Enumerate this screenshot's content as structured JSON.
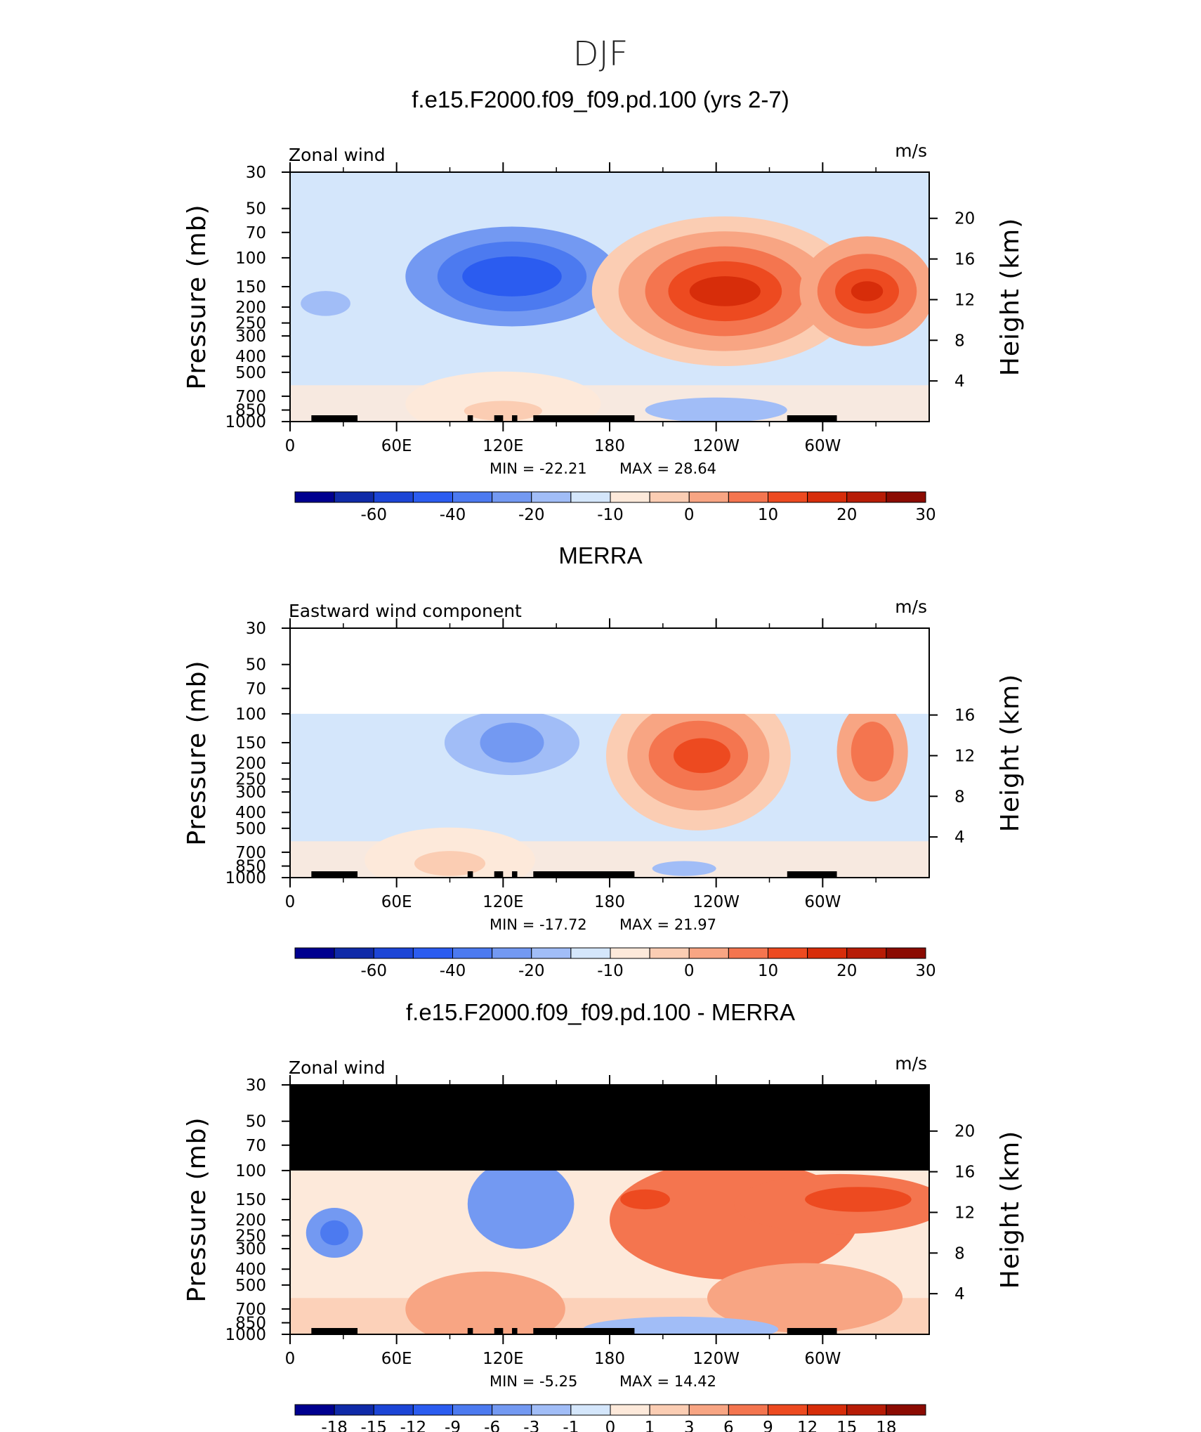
{
  "page_title": "DJF",
  "palette": {
    "p0": [
      "#00008f",
      "#0f2aa8",
      "#1c45d6",
      "#2b5cf0",
      "#4c7af0",
      "#7399f2",
      "#a1bdf7",
      "#d4e6fb",
      "#fde9da",
      "#fbcdb3",
      "#f8a583",
      "#f4754f",
      "#ed4a20",
      "#d72d0a",
      "#b71c06",
      "#8b0b02"
    ],
    "diff": [
      "#00008f",
      "#0f2aa8",
      "#1c45d6",
      "#2b5cf0",
      "#4c7af0",
      "#7399f2",
      "#a1bdf7",
      "#d4e6fb",
      "#fde9da",
      "#fbcdb3",
      "#f8a583",
      "#f4754f",
      "#ed4a20",
      "#d72d0a",
      "#b71c06",
      "#8b0b02"
    ]
  },
  "chart_data": [
    {
      "type": "heatmap",
      "title": "f.e15.F2000.f09_f09.pd.100 (yrs 2-7)",
      "left_label": "Zonal wind",
      "units": "m/s",
      "ylabel": "Pressure  (mb)",
      "ylabel_right": "Height  (km)",
      "x_ticks": [
        "0",
        "60E",
        "120E",
        "180",
        "120W",
        "60W"
      ],
      "y_ticks": [
        "30",
        "50",
        "70",
        "100",
        "150",
        "200",
        "250",
        "300",
        "400",
        "500",
        "700",
        "850",
        "1000"
      ],
      "height_ticks": [
        "20",
        "16",
        "12",
        "8",
        "4"
      ],
      "stats": {
        "min_label": "MIN  =",
        "min": "-22.21",
        "max_label": "MAX  =",
        "max": "28.64"
      },
      "colorbar_labels": [
        "-60",
        "-40",
        "-20",
        "-10",
        "0",
        "10",
        "20",
        "30"
      ],
      "masked_top": "none"
    },
    {
      "type": "heatmap",
      "title": "MERRA",
      "left_label": "Eastward wind component",
      "units": "m/s",
      "ylabel": "Pressure  (mb)",
      "ylabel_right": "Height  (km)",
      "x_ticks": [
        "0",
        "60E",
        "120E",
        "180",
        "120W",
        "60W"
      ],
      "y_ticks": [
        "30",
        "50",
        "70",
        "100",
        "150",
        "200",
        "250",
        "300",
        "400",
        "500",
        "700",
        "850",
        "1000"
      ],
      "height_ticks": [
        "16",
        "12",
        "8",
        "4"
      ],
      "stats": {
        "min_label": "MIN  =",
        "min": "-17.72",
        "max_label": "MAX  =",
        "max": "21.97"
      },
      "colorbar_labels": [
        "-60",
        "-40",
        "-20",
        "-10",
        "0",
        "10",
        "20",
        "30"
      ],
      "masked_top": "white"
    },
    {
      "type": "heatmap",
      "title": "f.e15.F2000.f09_f09.pd.100 - MERRA",
      "left_label": "Zonal wind",
      "units": "m/s",
      "ylabel": "Pressure  (mb)",
      "ylabel_right": "Height  (km)",
      "x_ticks": [
        "0",
        "60E",
        "120E",
        "180",
        "120W",
        "60W"
      ],
      "y_ticks": [
        "30",
        "50",
        "70",
        "100",
        "150",
        "200",
        "250",
        "300",
        "400",
        "500",
        "700",
        "850",
        "1000"
      ],
      "height_ticks": [
        "20",
        "16",
        "12",
        "8",
        "4"
      ],
      "stats": {
        "min_label": "MIN  =",
        "min": "-5.25",
        "max_label": "MAX  =",
        "max": "14.42"
      },
      "colorbar_labels": [
        "-18",
        "-15",
        "-12",
        "-9",
        "-6",
        "-3",
        "-1",
        "0",
        "1",
        "3",
        "6",
        "9",
        "12",
        "15",
        "18"
      ],
      "masked_top": "black"
    }
  ]
}
